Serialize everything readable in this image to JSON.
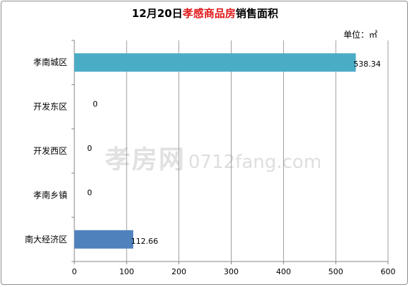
{
  "title": {
    "prefix": "12月20日",
    "highlight": "孝感商品房",
    "suffix": "销售面积"
  },
  "unit_label": "单位：㎡",
  "watermark": {
    "brand": "孝房网",
    "domain": "0712fang.com"
  },
  "colors": {
    "teal": "#4bacc6",
    "blue": "#4f81bd",
    "grid": "#868686"
  },
  "chart_data": {
    "type": "bar",
    "orientation": "horizontal",
    "title": "12月20日孝感商品房销售面积",
    "unit": "单位：㎡",
    "categories": [
      "孝南城区",
      "开发东区",
      "开发西区",
      "孝南乡镇",
      "南大经济区"
    ],
    "values": [
      538.34,
      0,
      0,
      0,
      112.66
    ],
    "value_labels": [
      "538.34",
      "0",
      "0",
      "0",
      "112.66"
    ],
    "bar_colors": [
      "#4bacc6",
      "#4bacc6",
      "#4bacc6",
      "#4bacc6",
      "#4f81bd"
    ],
    "xlim": [
      0,
      600
    ],
    "xticks": [
      0,
      100,
      200,
      300,
      400,
      500,
      600
    ],
    "grid": true,
    "legend": "none"
  }
}
